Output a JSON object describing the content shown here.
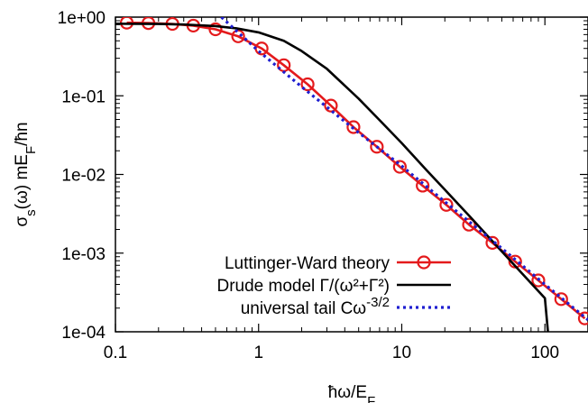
{
  "chart_data": {
    "type": "line",
    "x_scale": "log",
    "y_scale": "log",
    "xlim": [
      0.1,
      200
    ],
    "ylim": [
      0.0001,
      1
    ],
    "xlabel": "ħω/E_F",
    "ylabel": "σ_s(ω) mE_F/ħn",
    "x_ticks": [
      0.1,
      1,
      10,
      100
    ],
    "x_tick_labels": [
      "0.1",
      "1",
      "10",
      "100"
    ],
    "y_ticks": [
      0.0001,
      0.001,
      0.01,
      0.1,
      1
    ],
    "y_tick_labels": [
      "1e-04",
      "1e-03",
      "1e-02",
      "1e-01",
      "1e+00"
    ],
    "grid": false,
    "legend_position": "bottom-right",
    "series": [
      {
        "name": "Luttinger-Ward theory",
        "color": "#e41a1c",
        "style": "solid-with-open-circles",
        "x": [
          0.12,
          0.17,
          0.25,
          0.35,
          0.5,
          0.72,
          1.05,
          1.5,
          2.2,
          3.2,
          4.6,
          6.7,
          9.7,
          14,
          20.5,
          29.5,
          43,
          62,
          90,
          130,
          190
        ],
        "y": [
          0.85,
          0.84,
          0.82,
          0.78,
          0.7,
          0.57,
          0.4,
          0.245,
          0.14,
          0.075,
          0.04,
          0.0225,
          0.0125,
          0.0072,
          0.0041,
          0.0023,
          0.00135,
          0.00078,
          0.00045,
          0.00026,
          0.000148
        ]
      },
      {
        "name": "Drude model Γ/(ω²+Γ²)",
        "color": "#000000",
        "style": "solid",
        "x": [
          0.1,
          0.2,
          0.3,
          0.5,
          0.7,
          1,
          1.5,
          2,
          3,
          5,
          7,
          10,
          15,
          20,
          30,
          50,
          70,
          100,
          105
        ],
        "y": [
          0.825,
          0.82,
          0.805,
          0.77,
          0.72,
          0.64,
          0.5,
          0.37,
          0.22,
          0.092,
          0.049,
          0.025,
          0.0112,
          0.0064,
          0.0029,
          0.00105,
          0.00054,
          0.000267,
          0.0001
        ]
      },
      {
        "name": "universal tail Cω^-3/2",
        "color": "#1f1fd0",
        "style": "dotted",
        "x": [
          0.55,
          1,
          2,
          5,
          10,
          20,
          50,
          100,
          200
        ],
        "y": [
          1,
          0.37,
          0.13,
          0.034,
          0.0128,
          0.0045,
          0.00115,
          0.0004,
          0.000142
        ]
      }
    ]
  }
}
